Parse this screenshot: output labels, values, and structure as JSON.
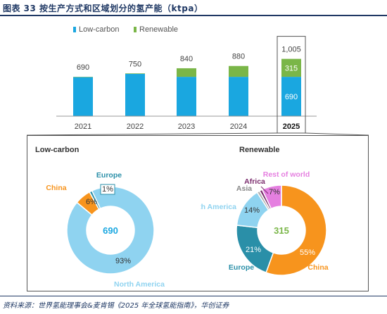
{
  "header": {
    "title": "图表 33   按生产方式和区域划分的氢产能（ktpa）"
  },
  "footer": {
    "source": "资料来源：世界氢能理事会&麦肯锡《2025 年全球氢能指南》，华创证券"
  },
  "colors": {
    "low_carbon": "#1aa7e0",
    "renewable": "#7ab648",
    "title": "#1f3864",
    "china": "#f7941d",
    "north_america": "#8fd3f0",
    "europe": "#2a8fa8",
    "asia": "#b0b0b0",
    "africa": "#7b2d6e",
    "rest_of_world": "#e57fe0",
    "other_low": "#3a6fa8"
  },
  "chart_data": [
    {
      "type": "bar",
      "stacked": true,
      "categories": [
        "2021",
        "2022",
        "2023",
        "2024",
        "2025"
      ],
      "highlight_category": "2025",
      "series": [
        {
          "name": "Low-carbon",
          "values": [
            684,
            741,
            690,
            690,
            690
          ]
        },
        {
          "name": "Renewable",
          "values": [
            6,
            9,
            150,
            190,
            315
          ]
        }
      ],
      "totals": [
        "690",
        "750",
        "840",
        "880",
        "1,005"
      ],
      "segment_labels": [
        {
          "category": "2025",
          "series": "Renewable",
          "label": "315"
        },
        {
          "category": "2025",
          "series": "Low-carbon",
          "label": "690"
        }
      ],
      "legend": [
        "Low-carbon",
        "Renewable"
      ],
      "legend_position": "top-center",
      "grid": false
    },
    {
      "type": "pie",
      "style": "donut",
      "panel": "Low-carbon",
      "center_label": "690",
      "slices": [
        {
          "name": "North America",
          "value": 93,
          "label": "93%",
          "show_name": true
        },
        {
          "name": "China",
          "value": 6,
          "label": "6%",
          "show_name": true
        },
        {
          "name": "Europe",
          "value": 1,
          "label": "1%",
          "show_name": true
        }
      ]
    },
    {
      "type": "pie",
      "style": "donut",
      "panel": "Renewable",
      "center_label": "315",
      "slices": [
        {
          "name": "China",
          "value": 55,
          "label": "55%",
          "show_name": true
        },
        {
          "name": "Europe",
          "value": 21,
          "label": "21%",
          "show_name": true
        },
        {
          "name": "North America",
          "value": 14,
          "label": "14%",
          "show_name": true
        },
        {
          "name": "Asia",
          "value": 1,
          "label": "",
          "show_name": true
        },
        {
          "name": "Africa",
          "value": 1,
          "label": "",
          "show_name": true
        },
        {
          "name": "Rest of world",
          "value": 7,
          "label": "7%",
          "show_name": true
        }
      ]
    }
  ]
}
